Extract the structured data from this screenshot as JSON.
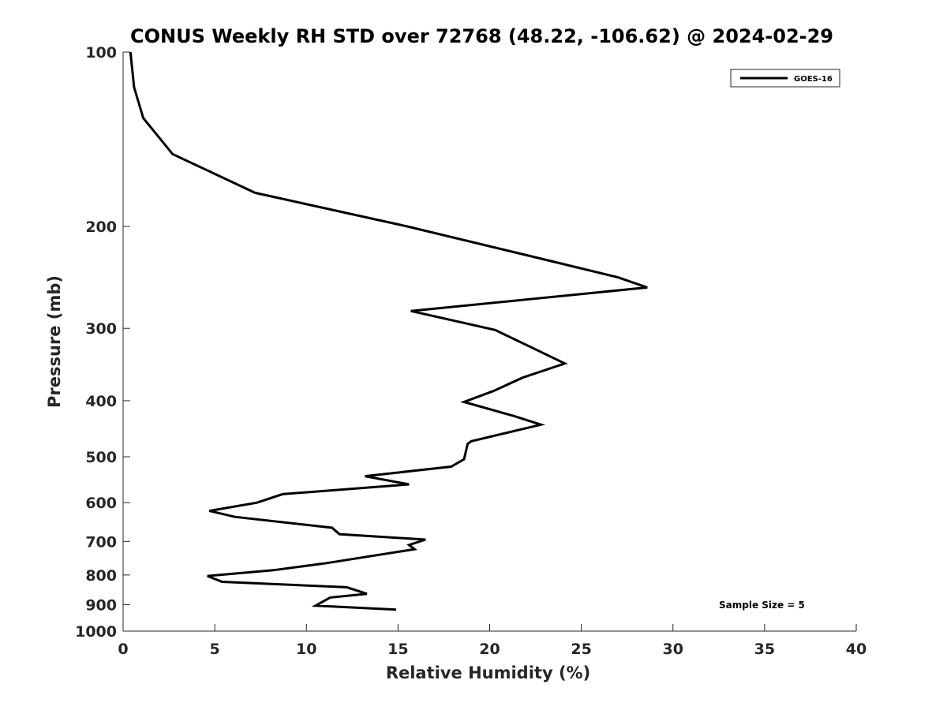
{
  "chart_data": {
    "type": "line",
    "title": "CONUS Weekly RH STD over 72768 (48.22, -106.62) @ 2024-02-29",
    "xlabel": "Relative Humidity (%)",
    "ylabel": "Pressure (mb)",
    "xlim": [
      0,
      40
    ],
    "ylim": [
      100,
      1000
    ],
    "yscale": "log",
    "y_reversed": true,
    "x_ticks": [
      0,
      5,
      10,
      15,
      20,
      25,
      30,
      35,
      40
    ],
    "y_ticks": [
      100,
      200,
      300,
      400,
      500,
      600,
      700,
      800,
      900,
      1000
    ],
    "grid": false,
    "legend_position": "top-right",
    "series": [
      {
        "name": "GOES-16",
        "color": "#000000",
        "x": [
          0.4,
          0.6,
          1.1,
          2.7,
          7.2,
          15.5,
          22.2,
          27.0,
          28.6,
          15.7,
          20.3,
          22.4,
          24.1,
          21.8,
          20.2,
          18.6,
          21.3,
          22.8,
          19.0,
          18.8,
          18.6,
          17.9,
          13.2,
          15.6,
          8.7,
          7.3,
          4.7,
          6.1,
          11.4,
          11.8,
          16.5,
          15.6,
          15.9,
          11.1,
          8.2,
          4.6,
          5.4,
          12.2,
          13.3,
          11.3,
          10.5,
          14.9
        ],
        "y": [
          100,
          115,
          130,
          150,
          175,
          200,
          225,
          245,
          255,
          280,
          302,
          325,
          345,
          365,
          385,
          402,
          425,
          440,
          470,
          475,
          505,
          520,
          540,
          558,
          580,
          600,
          620,
          635,
          663,
          680,
          695,
          710,
          722,
          763,
          785,
          803,
          822,
          840,
          862,
          875,
          904,
          918
        ]
      }
    ],
    "annotations": [
      "Sample Size = 5"
    ]
  }
}
